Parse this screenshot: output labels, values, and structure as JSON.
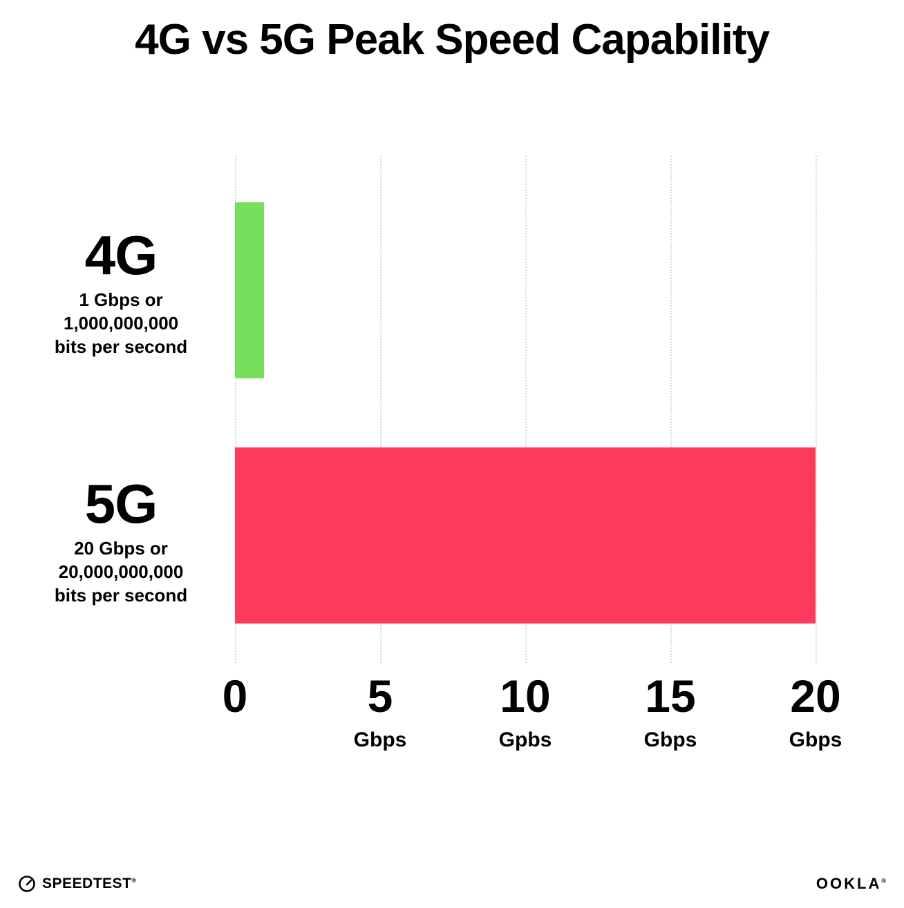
{
  "chart_data": {
    "type": "bar",
    "orientation": "horizontal",
    "title": "4G vs 5G Peak Speed Capability",
    "xlabel": "",
    "ylabel": "",
    "xlim": [
      0,
      20
    ],
    "grid": "dotted-vertical-gridlines",
    "legend": "none",
    "categories": [
      "4G",
      "5G"
    ],
    "values": [
      1,
      20
    ],
    "bars": [
      {
        "label": "4G",
        "sublabel": "1 Gbps or\n1,000,000,000\nbits per second",
        "value": 1,
        "color": "#77de5c"
      },
      {
        "label": "5G",
        "sublabel": "20 Gbps or\n20,000,000,000\nbits per second",
        "value": 20,
        "color": "#fb3a5d"
      }
    ],
    "x_ticks": [
      {
        "value": 0,
        "number": "0",
        "unit": ""
      },
      {
        "value": 5,
        "number": "5",
        "unit": "Gbps"
      },
      {
        "value": 10,
        "number": "10",
        "unit": "Gpbs"
      },
      {
        "value": 15,
        "number": "15",
        "unit": "Gbps"
      },
      {
        "value": 20,
        "number": "20",
        "unit": "Gbps"
      }
    ]
  },
  "footer": {
    "speedtest_label": "SPEEDTEST",
    "speedtest_trademark": "®",
    "ookla_label": "OOKLA",
    "ookla_trademark": "®"
  },
  "colors": {
    "background": "#ffffff",
    "text": "#000000",
    "gridline": "#d8d8d8",
    "bar_4g": "#77de5c",
    "bar_5g": "#fb3a5d"
  }
}
